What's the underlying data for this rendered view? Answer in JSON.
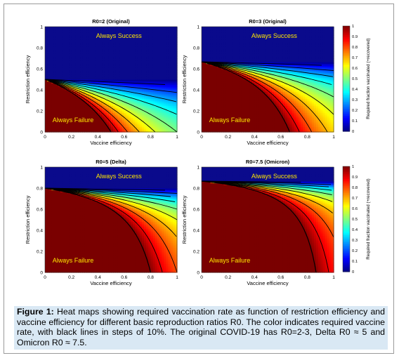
{
  "panels": [
    {
      "title": "R0=2 (Original)",
      "R0": 2
    },
    {
      "title": "R0=3 (Original)",
      "R0": 3
    },
    {
      "title": "R0=5 (Delta)",
      "R0": 5
    },
    {
      "title": "R0=7.5 (Omicron)",
      "R0": 7.5
    }
  ],
  "region_labels": {
    "success": "Always Success",
    "failure": "Always Failure"
  },
  "axes": {
    "xlabel": "Vaccine efficiency",
    "ylabel": "Restriction efficiency",
    "xticks": [
      "0",
      "0.2",
      "0.4",
      "0.6",
      "0.8",
      "1"
    ],
    "yticks": [
      "0",
      "0.2",
      "0.4",
      "0.6",
      "0.8",
      "1"
    ]
  },
  "colorbar": {
    "label": "Required fraction vaccinated (+recovered)",
    "ticks": [
      "0",
      "0.1",
      "0.2",
      "0.3",
      "0.4",
      "0.5",
      "0.6",
      "0.7",
      "0.8",
      "0.9",
      "1"
    ]
  },
  "caption": {
    "label": "Figure 1:",
    "text": " Heat maps showing required vaccination rate as function of restriction efficiency and vaccine efficiency for different basic reproduction ratios R0. The color indicates required vaccine rate, with black lines in steps of 10%. The original COVID-19 has R0=2-3, Delta R0 ≈ 5 and Omicron R0 ≈ 7.5."
  },
  "chart_data": {
    "type": "heatmap",
    "x_range": [
      0,
      1
    ],
    "y_range": [
      0,
      1
    ],
    "color_range": [
      0,
      1
    ],
    "contour_step": 0.1,
    "series": [
      {
        "name": "R0=2 (Original)",
        "R0": 2
      },
      {
        "name": "R0=3 (Original)",
        "R0": 3
      },
      {
        "name": "R0=5 (Delta)",
        "R0": 5
      },
      {
        "name": "R0=7.5 (Omicron)",
        "R0": 7.5
      }
    ]
  }
}
